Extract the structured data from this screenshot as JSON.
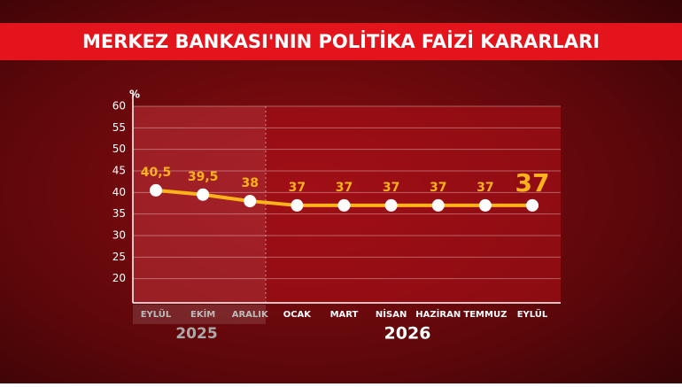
{
  "chart_data": {
    "type": "line",
    "title": "MERKEZ BANKASI'NIN POLİTİKA FAİZİ KARARLARI",
    "y_unit": "%",
    "categories": [
      "EYLÜL",
      "EKİM",
      "ARALIK",
      "OCAK",
      "MART",
      "NİSAN",
      "HAZİRAN",
      "TEMMUZ",
      "EYLÜL"
    ],
    "period_labels": [
      "2025",
      "2026"
    ],
    "series": [
      {
        "name": "Politika faizi",
        "color": "#ffb31a",
        "values": [
          40.5,
          39.5,
          38,
          37,
          37,
          37,
          37,
          37,
          37
        ],
        "value_labels": [
          "40,5",
          "39,5",
          "38",
          "37",
          "37",
          "37",
          "37",
          "37",
          "37"
        ]
      }
    ],
    "ylim": [
      15,
      60
    ],
    "yticks": [
      20,
      25,
      30,
      35,
      40,
      45,
      50,
      55,
      60
    ],
    "grid": true
  }
}
